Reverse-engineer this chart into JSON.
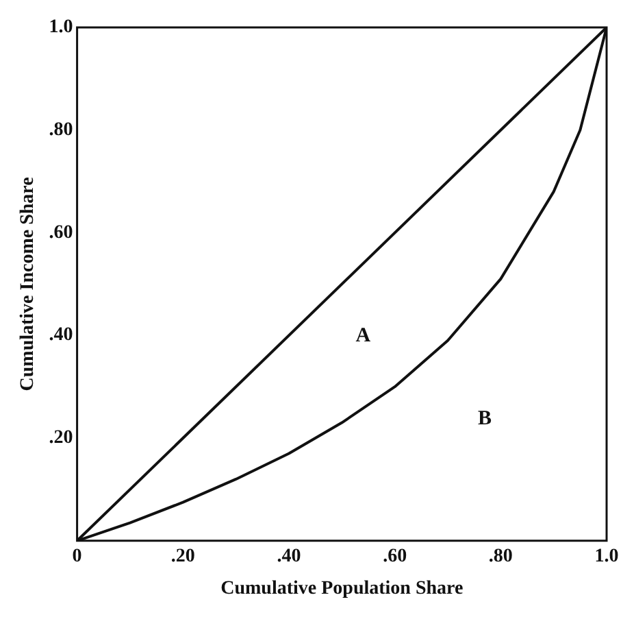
{
  "chart_data": {
    "type": "line",
    "xlabel": "Cumulative Population Share",
    "ylabel": "Cumulative Income Share",
    "series": [
      {
        "color": "#111111",
        "x": [
          0,
          1
        ],
        "values": [
          0,
          1
        ]
      },
      {
        "color": "#111111",
        "x": [
          0,
          0.1,
          0.2,
          0.3,
          0.4,
          0.5,
          0.6,
          0.7,
          0.8,
          0.9,
          0.95,
          1
        ],
        "values": [
          0,
          0.035,
          0.075,
          0.12,
          0.17,
          0.23,
          0.3,
          0.39,
          0.51,
          0.68,
          0.8,
          1
        ]
      }
    ],
    "xlim": [
      0,
      1
    ],
    "ylim": [
      0,
      1
    ],
    "xticks": [
      0,
      {
        "value": 0.2,
        "label": ".20"
      },
      {
        "value": 0.4,
        "label": ".40"
      },
      {
        "value": 0.6,
        "label": ".60"
      },
      {
        "value": 0.8,
        "label": ".80"
      },
      {
        "value": 1,
        "label": "1.0"
      }
    ],
    "yticks": [
      {
        "value": 0.2,
        "label": ".20"
      },
      {
        "value": 0.4,
        "label": ".40"
      },
      {
        "value": 0.6,
        "label": ".60"
      },
      {
        "value": 0.8,
        "label": ".80"
      },
      {
        "value": 1,
        "label": "1.0"
      }
    ],
    "annotations": [
      "A",
      "B"
    ],
    "grid": false,
    "marker": "none",
    "line_style": "solid",
    "legend": false
  }
}
